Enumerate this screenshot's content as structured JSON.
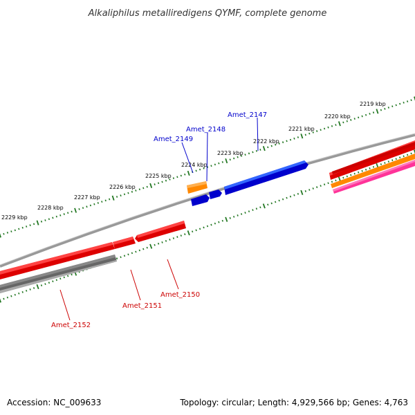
{
  "title": "Alkaliphilus metalliredigens QYMF, complete genome",
  "accession": "Accession: NC_009633",
  "summary": "Topology: circular; Length: 4,929,566 bp; Genes: 4,763",
  "colors": {
    "forward": "#0000cc",
    "reverse": "#cc0000",
    "reverse_light": "#ff3333",
    "orange": "#ff8800",
    "magenta": "#ff3399",
    "gray": "#666666",
    "tick": "#227722",
    "backbone": "#888888"
  },
  "scale_labels": [
    "2219 kbp",
    "2220 kbp",
    "2221 kbp",
    "2222 kbp",
    "2223 kbp",
    "2224 kbp",
    "2225 kbp",
    "2226 kbp",
    "2227 kbp",
    "2228 kbp",
    "2229 kbp"
  ],
  "genes_forward": [
    {
      "label": "Amet_2147"
    },
    {
      "label": "Amet_2148"
    },
    {
      "label": "Amet_2149"
    }
  ],
  "genes_reverse": [
    {
      "label": "Amet_2150"
    },
    {
      "label": "Amet_2151"
    },
    {
      "label": "Amet_2152"
    }
  ]
}
